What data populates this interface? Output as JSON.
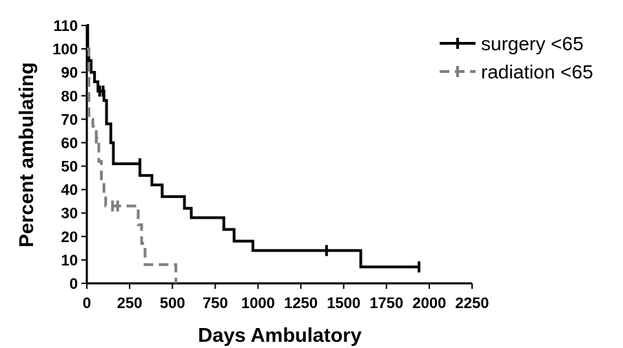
{
  "chart_data": {
    "type": "line",
    "title": "",
    "xlabel": "Days Ambulatory",
    "ylabel": "Percent ambulating",
    "xlim": [
      0,
      2250
    ],
    "ylim": [
      0,
      110
    ],
    "xticks": [
      0,
      250,
      500,
      750,
      1000,
      1250,
      1500,
      1750,
      2000,
      2250
    ],
    "yticks": [
      0,
      10,
      20,
      30,
      40,
      50,
      60,
      70,
      80,
      90,
      100,
      110
    ],
    "grid": false,
    "legend_position": "top-right",
    "series": [
      {
        "name": "surgery <65",
        "color": "#000000",
        "style": "solid",
        "step_points": [
          [
            0,
            110
          ],
          [
            5,
            110
          ],
          [
            5,
            100
          ],
          [
            12,
            100
          ],
          [
            12,
            95
          ],
          [
            25,
            95
          ],
          [
            25,
            90
          ],
          [
            45,
            90
          ],
          [
            45,
            86
          ],
          [
            65,
            86
          ],
          [
            65,
            82
          ],
          [
            100,
            82
          ],
          [
            100,
            78
          ],
          [
            115,
            78
          ],
          [
            115,
            68
          ],
          [
            140,
            68
          ],
          [
            140,
            60
          ],
          [
            155,
            60
          ],
          [
            155,
            51
          ],
          [
            310,
            51
          ],
          [
            310,
            46
          ],
          [
            380,
            46
          ],
          [
            380,
            42
          ],
          [
            440,
            42
          ],
          [
            440,
            37
          ],
          [
            570,
            37
          ],
          [
            570,
            32
          ],
          [
            610,
            32
          ],
          [
            610,
            28
          ],
          [
            800,
            28
          ],
          [
            800,
            23
          ],
          [
            860,
            23
          ],
          [
            860,
            18
          ],
          [
            970,
            18
          ],
          [
            970,
            14
          ],
          [
            1600,
            14
          ],
          [
            1600,
            7
          ],
          [
            1940,
            7
          ]
        ],
        "censored": [
          [
            75,
            82
          ],
          [
            95,
            82
          ],
          [
            310,
            51
          ],
          [
            1400,
            14
          ],
          [
            1940,
            7
          ]
        ]
      },
      {
        "name": "radiation <65",
        "color": "#7f7f7f",
        "style": "dashed",
        "step_points": [
          [
            0,
            100
          ],
          [
            12,
            100
          ],
          [
            12,
            70
          ],
          [
            35,
            70
          ],
          [
            35,
            67
          ],
          [
            55,
            67
          ],
          [
            55,
            62
          ],
          [
            70,
            62
          ],
          [
            70,
            52
          ],
          [
            85,
            52
          ],
          [
            85,
            43
          ],
          [
            100,
            43
          ],
          [
            100,
            38
          ],
          [
            110,
            38
          ],
          [
            110,
            33
          ],
          [
            300,
            33
          ],
          [
            300,
            25
          ],
          [
            320,
            25
          ],
          [
            320,
            17
          ],
          [
            340,
            17
          ],
          [
            340,
            8
          ],
          [
            520,
            8
          ],
          [
            520,
            0
          ]
        ],
        "censored": [
          [
            55,
            62
          ],
          [
            150,
            33
          ],
          [
            180,
            33
          ]
        ]
      }
    ]
  }
}
